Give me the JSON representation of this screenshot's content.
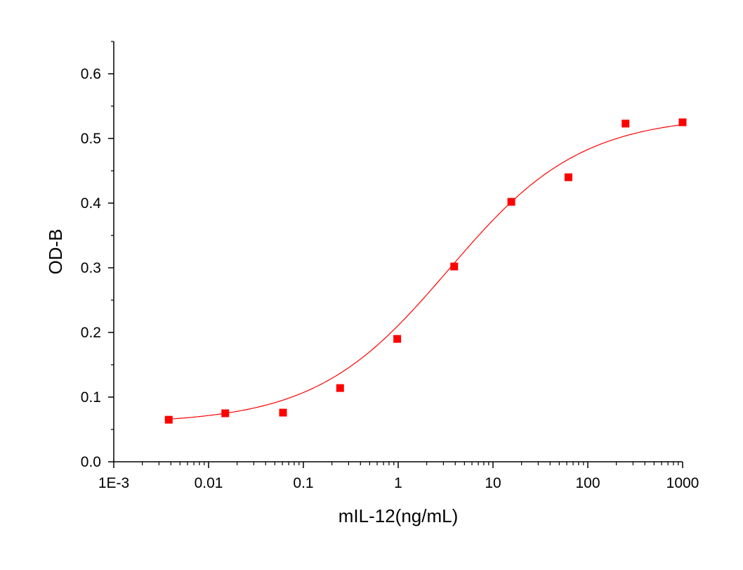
{
  "chart_data": {
    "type": "scatter",
    "title": "",
    "xlabel": "mIL-12(ng/mL)",
    "ylabel": "OD-B",
    "xscale": "log",
    "xlim": [
      0.001,
      1000
    ],
    "ylim": [
      0.0,
      0.65
    ],
    "x_ticks": [
      {
        "value": 0.001,
        "label": "1E-3"
      },
      {
        "value": 0.01,
        "label": "0.01"
      },
      {
        "value": 0.1,
        "label": "0.1"
      },
      {
        "value": 1,
        "label": "1"
      },
      {
        "value": 10,
        "label": "10"
      },
      {
        "value": 100,
        "label": "100"
      },
      {
        "value": 1000,
        "label": "1000"
      }
    ],
    "y_ticks": [
      {
        "value": 0.0,
        "label": "0.0"
      },
      {
        "value": 0.1,
        "label": "0.1"
      },
      {
        "value": 0.2,
        "label": "0.2"
      },
      {
        "value": 0.3,
        "label": "0.3"
      },
      {
        "value": 0.4,
        "label": "0.4"
      },
      {
        "value": 0.5,
        "label": "0.5"
      },
      {
        "value": 0.6,
        "label": "0.6"
      }
    ],
    "grid": false,
    "legend": "none",
    "series": [
      {
        "marker": "square",
        "color": "#ff0000",
        "points": [
          {
            "x": 0.0038,
            "y": 0.065
          },
          {
            "x": 0.015,
            "y": 0.075
          },
          {
            "x": 0.061,
            "y": 0.076
          },
          {
            "x": 0.244,
            "y": 0.114
          },
          {
            "x": 0.977,
            "y": 0.19
          },
          {
            "x": 3.9,
            "y": 0.302
          },
          {
            "x": 15.6,
            "y": 0.402
          },
          {
            "x": 62.5,
            "y": 0.44
          },
          {
            "x": 250,
            "y": 0.523
          },
          {
            "x": 1000,
            "y": 0.525
          }
        ]
      }
    ],
    "fit_curve": {
      "model": "4PL",
      "color": "#ff0000",
      "bottom": 0.059,
      "top": 0.535,
      "ec50": 3.4,
      "hill": 0.62,
      "x_range": [
        0.0038,
        1000
      ]
    }
  }
}
